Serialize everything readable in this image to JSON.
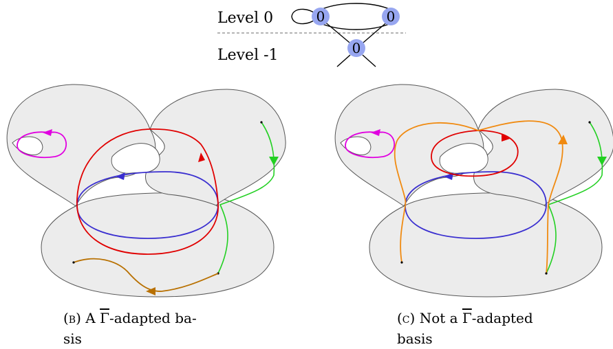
{
  "top_graph": {
    "level0_label": "Level 0",
    "level_minus1_label": "Level -1",
    "vertex_labels": [
      "0",
      "0",
      "0"
    ],
    "vertex_color": "#97a6f0"
  },
  "panel_b": {
    "caption_tag": "(b)",
    "caption_pre": "A",
    "caption_gamma": "Γ",
    "caption_post": "-adapted ba-",
    "caption_line2": "sis"
  },
  "panel_c": {
    "caption_tag": "(c)",
    "caption_pre": "Not a",
    "caption_gamma": "Γ",
    "caption_post": "-adapted",
    "caption_line2": "basis"
  },
  "colors": {
    "surface_fill": "#ececec",
    "surface_stroke": "#555555",
    "red": "#e00000",
    "blue": "#3a2fd0",
    "green": "#22d022",
    "magenta": "#e000e0",
    "brown": "#b87000",
    "orange": "#f08a10"
  }
}
